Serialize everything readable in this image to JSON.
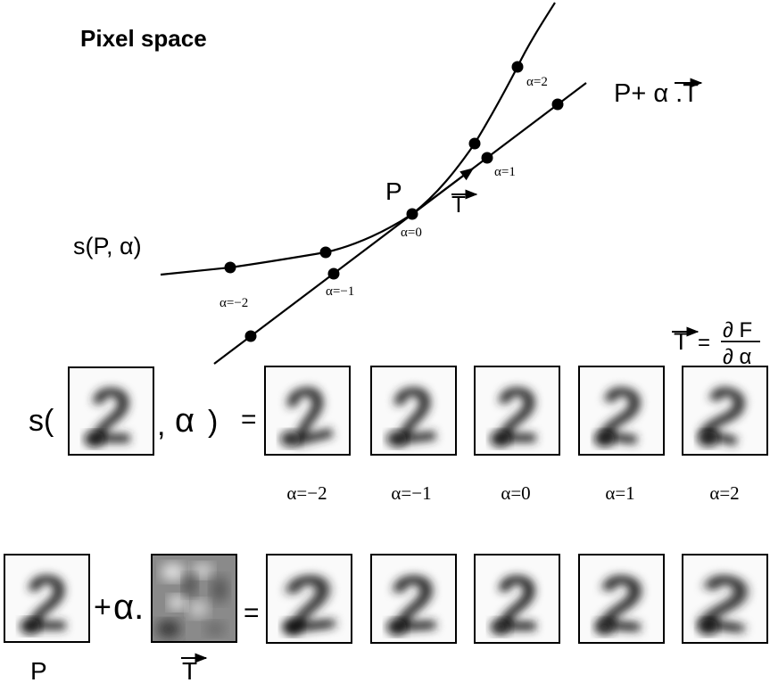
{
  "title": "Pixel space",
  "top_diagram": {
    "curve_label": "s(P, α)",
    "line_label": {
      "prefix": "P+ α .",
      "vector": "T"
    },
    "point_label": "P",
    "tangent_label": "T",
    "curve_alpha_labels": [
      "α=−2",
      "α=0",
      "α=2"
    ],
    "line_alpha_labels": [
      "α=−1",
      "α=1"
    ],
    "equation": {
      "lhs": "T",
      "equals": "=",
      "numerator": "∂ F",
      "denominator": "∂ α"
    }
  },
  "row1": {
    "prefix": "s(",
    "middle": ",",
    "alpha": "α",
    "suffix": ")",
    "equals": "=",
    "alpha_labels": [
      "α=−2",
      "α=−1",
      "α=0",
      "α=1",
      "α=2"
    ]
  },
  "row2": {
    "plus": "+",
    "alpha": "α.",
    "equals": "=",
    "p_label": "P",
    "t_label": "T"
  },
  "digit_glyph": "2"
}
